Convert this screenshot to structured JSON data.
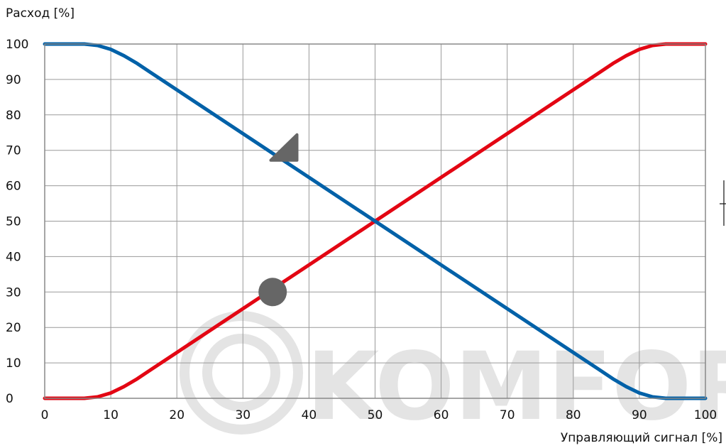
{
  "chart_data": {
    "type": "line",
    "ylabel": "Расход [%]",
    "xlabel": "Управляющий сигнал [%]",
    "xlim": [
      0,
      100
    ],
    "ylim": [
      0,
      100
    ],
    "x_ticks": [
      "0",
      "10",
      "20",
      "30",
      "40",
      "50",
      "60",
      "70",
      "80",
      "90",
      "100"
    ],
    "y_ticks": [
      "0",
      "10",
      "20",
      "30",
      "40",
      "50",
      "60",
      "70",
      "80",
      "90",
      "100"
    ],
    "grid": true,
    "series": [
      {
        "color": "#e30613",
        "x": [
          0,
          6,
          8,
          10,
          12,
          14,
          16,
          50,
          84,
          86,
          88,
          90,
          92,
          94,
          100
        ],
        "y": [
          0,
          0,
          0.4,
          1.5,
          3.3,
          5.5,
          8,
          50,
          92,
          94.5,
          96.7,
          98.5,
          99.6,
          100,
          100
        ]
      },
      {
        "color": "#0061a8",
        "x": [
          0,
          6,
          8,
          10,
          12,
          14,
          16,
          50,
          84,
          86,
          88,
          90,
          92,
          94,
          100
        ],
        "y": [
          100,
          100,
          99.6,
          98.5,
          96.7,
          94.5,
          92,
          50,
          8,
          5.5,
          3.3,
          1.5,
          0.4,
          0,
          0
        ]
      }
    ],
    "markers": [
      {
        "shape": "circle",
        "color": "#666666",
        "x": 34.5,
        "y": 30
      },
      {
        "shape": "triangle",
        "color": "#666666",
        "x": 35.5,
        "y": 70
      }
    ],
    "watermark": "KOMFORT"
  }
}
